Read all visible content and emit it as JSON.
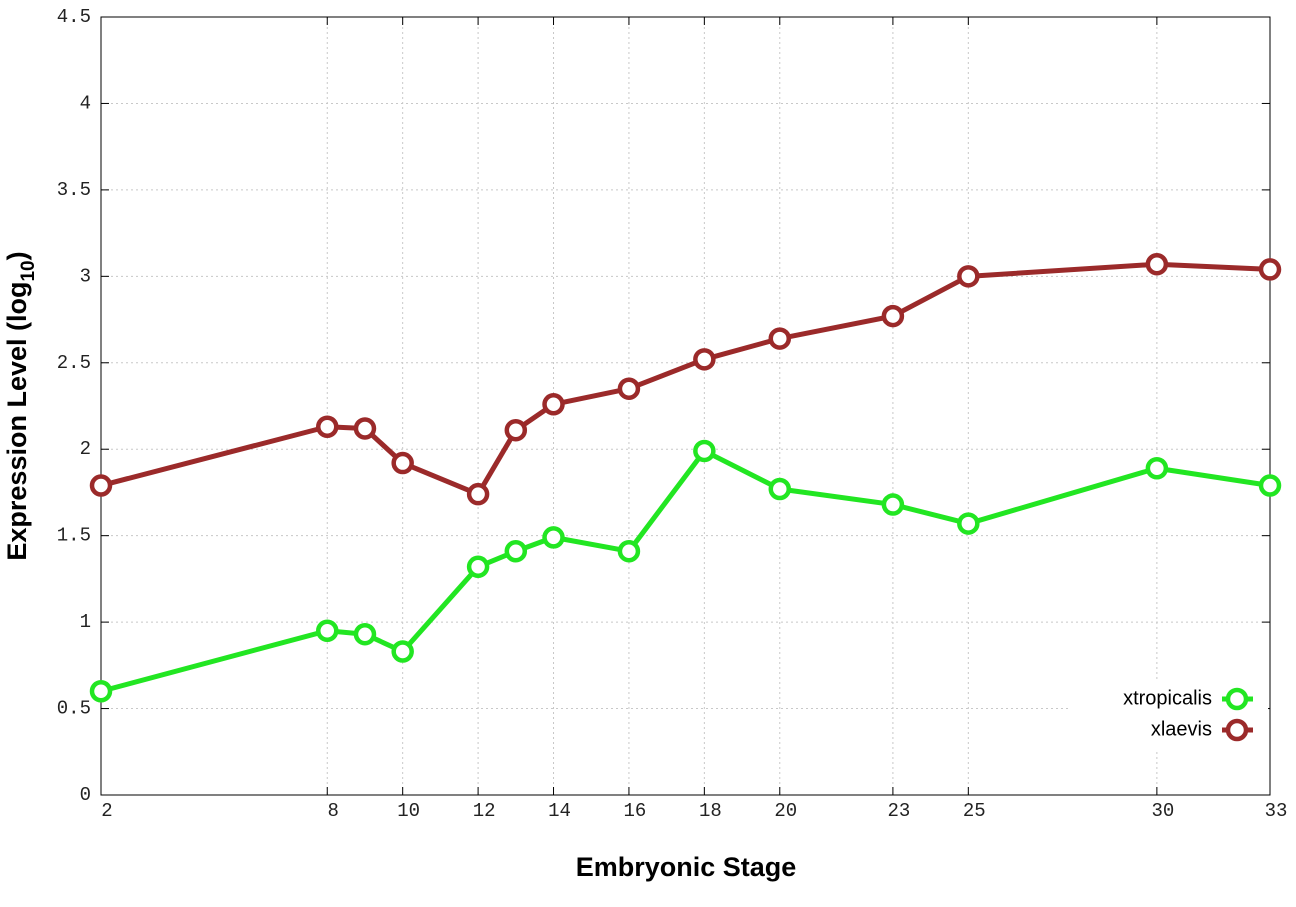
{
  "chart_data": {
    "type": "line",
    "x_label": "Embryonic Stage",
    "y_label": [
      "Expression Level (log",
      "10",
      ")"
    ],
    "x": [
      2,
      8,
      9,
      10,
      12,
      13,
      14,
      16,
      18,
      20,
      23,
      25,
      30,
      33
    ],
    "series": [
      {
        "name": "xtropicalis",
        "color": "#22e622",
        "values": [
          0.6,
          0.95,
          0.93,
          0.83,
          1.32,
          1.41,
          1.49,
          1.41,
          1.99,
          1.77,
          1.68,
          1.57,
          1.89,
          1.79
        ]
      },
      {
        "name": "xlaevis",
        "color": "#9b2a2a",
        "values": [
          1.79,
          2.13,
          2.12,
          1.92,
          1.74,
          2.11,
          2.26,
          2.35,
          2.52,
          2.64,
          2.77,
          3.0,
          3.07,
          3.04
        ]
      }
    ],
    "xlim": [
      2,
      33
    ],
    "xticks": [
      2,
      8,
      10,
      12,
      14,
      16,
      18,
      20,
      23,
      25,
      30,
      33
    ],
    "ylim": [
      0,
      4.5
    ],
    "yticks": [
      0,
      0.5,
      1,
      1.5,
      2,
      2.5,
      3,
      3.5,
      4,
      4.5
    ],
    "grid": true,
    "legend": "lower right"
  }
}
